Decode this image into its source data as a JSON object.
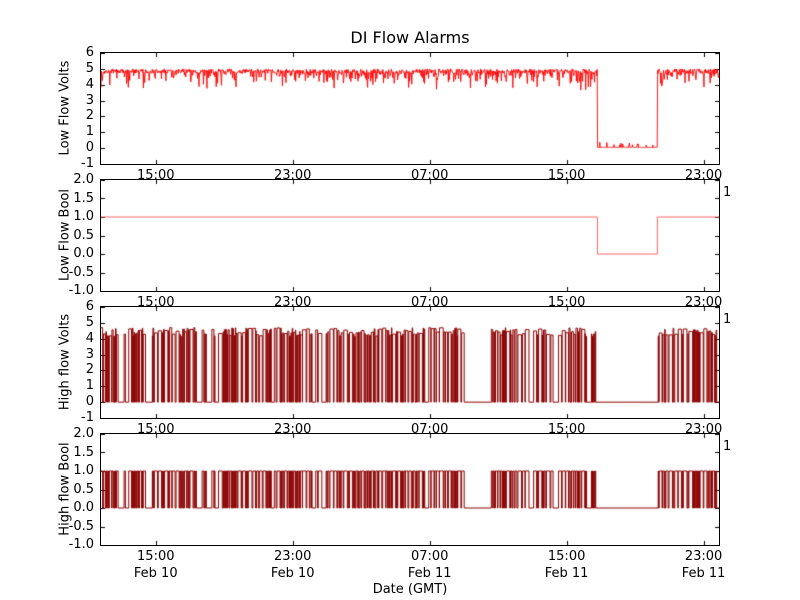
{
  "figure": {
    "title": "DI Flow Alarms",
    "xlabel": "Date (GMT)",
    "background": "#ffffff",
    "text_color": "#000000"
  },
  "axis": {
    "xlim": [
      11.8,
      47.9
    ],
    "xticks": [
      15,
      23,
      31,
      39,
      47
    ],
    "xtick_labels": [
      "15:00",
      "23:00",
      "07:00",
      "15:00",
      "23:00"
    ],
    "date_labels": [
      "Feb 10",
      "Feb 10",
      "Feb 11",
      "Feb 11",
      "Feb 11"
    ]
  },
  "chart_data": [
    {
      "type": "line",
      "ylabel": "Low Flow Volts",
      "ylim": [
        -1,
        6
      ],
      "ytick_values": [
        6,
        5,
        4,
        3,
        2,
        1,
        0,
        -1
      ],
      "ytick_labels": [
        "6",
        "5",
        "4",
        "3",
        "2",
        "1",
        "0",
        "-1"
      ],
      "color": "#ff0000",
      "right_label": "",
      "signal": {
        "kind": "noisy",
        "seed": 7,
        "samples": 1400,
        "base": 4.85,
        "jitter": 0.3,
        "dip_prob": 0.38,
        "dip_max": 1.3,
        "dropout": [
          40.8,
          44.3
        ],
        "dropout_value": 0.03
      }
    },
    {
      "type": "line",
      "ylabel": "Low Flow Bool",
      "ylim": [
        -1,
        2
      ],
      "ytick_values": [
        2.0,
        1.5,
        1.0,
        0.5,
        0.0,
        -0.5,
        -1.0
      ],
      "ytick_labels": [
        "2.0",
        "1.5",
        "1.0",
        "0.5",
        "0.0",
        "-0.5",
        "-1.0"
      ],
      "color": "#ff5555",
      "right_label": "1",
      "signal": {
        "kind": "bool_step",
        "high": 1,
        "low": 0,
        "drop": [
          40.8,
          44.3
        ]
      }
    },
    {
      "type": "line",
      "ylabel": "High flow Volts",
      "ylim": [
        -1,
        6
      ],
      "ytick_values": [
        6,
        5,
        4,
        3,
        2,
        1,
        0,
        -1
      ],
      "ytick_labels": [
        "6",
        "5",
        "4",
        "3",
        "2",
        "1",
        "0",
        "-1"
      ],
      "color": "#8b0000",
      "right_label": "1",
      "signal": {
        "kind": "toggle_volts",
        "seed": 42,
        "hi_base": 4.15,
        "hi_var": 0.55,
        "low": 0,
        "quiet": [
          [
            12.8,
            13.15
          ],
          [
            14.4,
            14.8
          ],
          [
            33.3,
            34.6
          ],
          [
            40.7,
            44.35
          ]
        ]
      }
    },
    {
      "type": "line",
      "ylabel": "High flow Bool",
      "ylim": [
        -1,
        2
      ],
      "ytick_values": [
        2.0,
        1.5,
        1.0,
        0.5,
        0.0,
        -0.5,
        -1.0
      ],
      "ytick_labels": [
        "2.0",
        "1.5",
        "1.0",
        "0.5",
        "0.0",
        "-0.5",
        "-1.0"
      ],
      "color": "#8b0000",
      "right_label": "1",
      "signal": {
        "kind": "toggle_bool",
        "seed": 42,
        "high": 1,
        "low": 0,
        "quiet": [
          [
            12.8,
            13.15
          ],
          [
            14.4,
            14.8
          ],
          [
            33.3,
            34.6
          ],
          [
            40.7,
            44.35
          ]
        ]
      }
    }
  ]
}
